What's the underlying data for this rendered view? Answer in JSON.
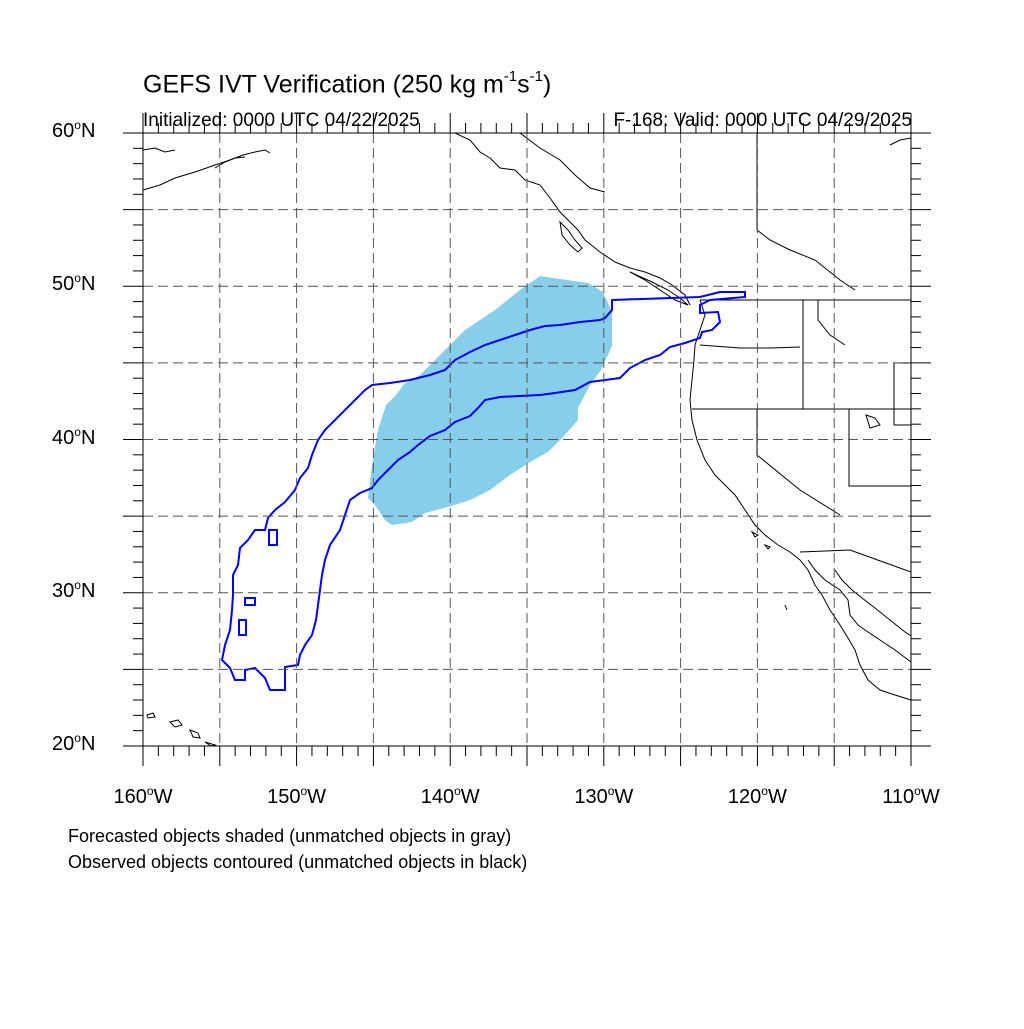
{
  "title": {
    "prefix": "GEFS IVT Verification (250 kg m",
    "sup1": "-1",
    "mid": "s",
    "sup2": "-1",
    "suffix": ")"
  },
  "subtitle": {
    "left": "Initialized: 0000 UTC 04/22/2025",
    "right": "F-168: Valid: 0000 UTC 04/29/2025"
  },
  "map": {
    "lon_range": [
      -160,
      -110
    ],
    "lat_range": [
      20,
      60
    ],
    "lat_labels": [
      {
        "value": 60,
        "num": "60",
        "hemi": "N"
      },
      {
        "value": 50,
        "num": "50",
        "hemi": "N"
      },
      {
        "value": 40,
        "num": "40",
        "hemi": "N"
      },
      {
        "value": 30,
        "num": "30",
        "hemi": "N"
      },
      {
        "value": 20,
        "num": "20",
        "hemi": "N"
      }
    ],
    "lon_labels": [
      {
        "value": -160,
        "num": "160",
        "hemi": "W"
      },
      {
        "value": -150,
        "num": "150",
        "hemi": "W"
      },
      {
        "value": -140,
        "num": "140",
        "hemi": "W"
      },
      {
        "value": -130,
        "num": "130",
        "hemi": "W"
      },
      {
        "value": -120,
        "num": "120",
        "hemi": "W"
      },
      {
        "value": -110,
        "num": "110",
        "hemi": "W"
      }
    ],
    "grid_interval_deg": 5,
    "forecast_fill_color": "#87ceeb",
    "observed_contour_color": "#0000ff",
    "coastline_color": "#000000"
  },
  "legend_notes": {
    "line1": "Forecasted objects shaded (unmatched objects in gray)",
    "line2": "Observed objects contoured (unmatched objects in black)"
  }
}
